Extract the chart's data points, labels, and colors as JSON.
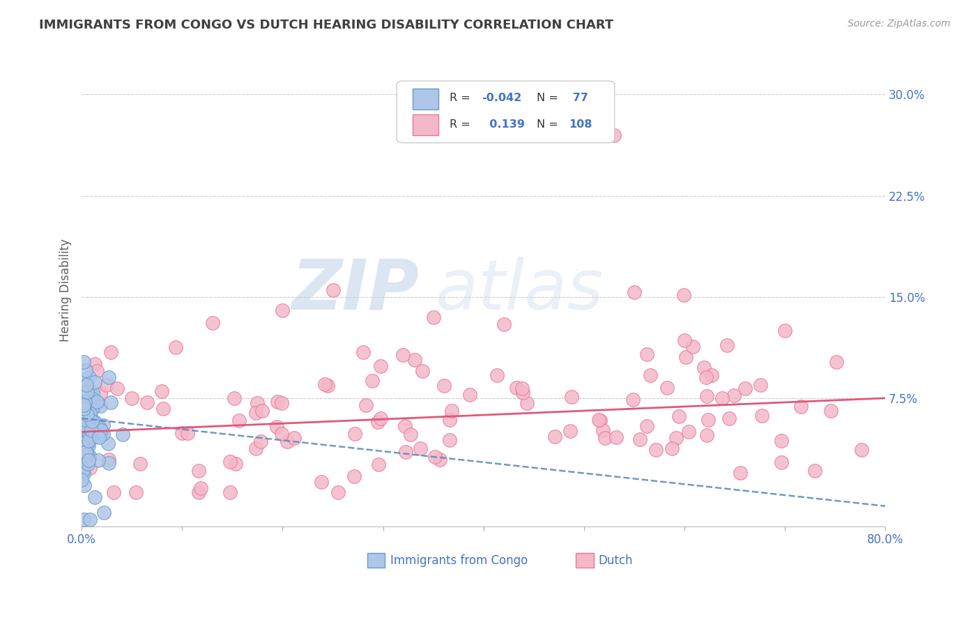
{
  "title": "IMMIGRANTS FROM CONGO VS DUTCH HEARING DISABILITY CORRELATION CHART",
  "source": "Source: ZipAtlas.com",
  "ylabel": "Hearing Disability",
  "ytick_vals": [
    0.075,
    0.15,
    0.225,
    0.3
  ],
  "ytick_labels": [
    "7.5%",
    "15.0%",
    "22.5%",
    "30.0%"
  ],
  "xlim": [
    0.0,
    0.8
  ],
  "ylim": [
    -0.02,
    0.33
  ],
  "series1_name": "Immigrants from Congo",
  "series1_fill_color": "#aec6e8",
  "series1_edge_color": "#6699cc",
  "series1_R": -0.042,
  "series1_N": 77,
  "series1_trend_color": "#5b8ec4",
  "series2_name": "Dutch",
  "series2_fill_color": "#f4b8c8",
  "series2_edge_color": "#e8789a",
  "series2_R": 0.139,
  "series2_N": 108,
  "series2_trend_color": "#e05878",
  "watermark_zip": "ZIP",
  "watermark_atlas": "atlas",
  "background_color": "#ffffff",
  "grid_color": "#cccccc",
  "tick_label_color": "#4472c4",
  "title_color": "#404040",
  "legend_color": "#4472c4",
  "pink_trend_start": 0.05,
  "pink_trend_end": 0.075,
  "blue_trend_start": 0.06,
  "blue_trend_end": -0.005
}
